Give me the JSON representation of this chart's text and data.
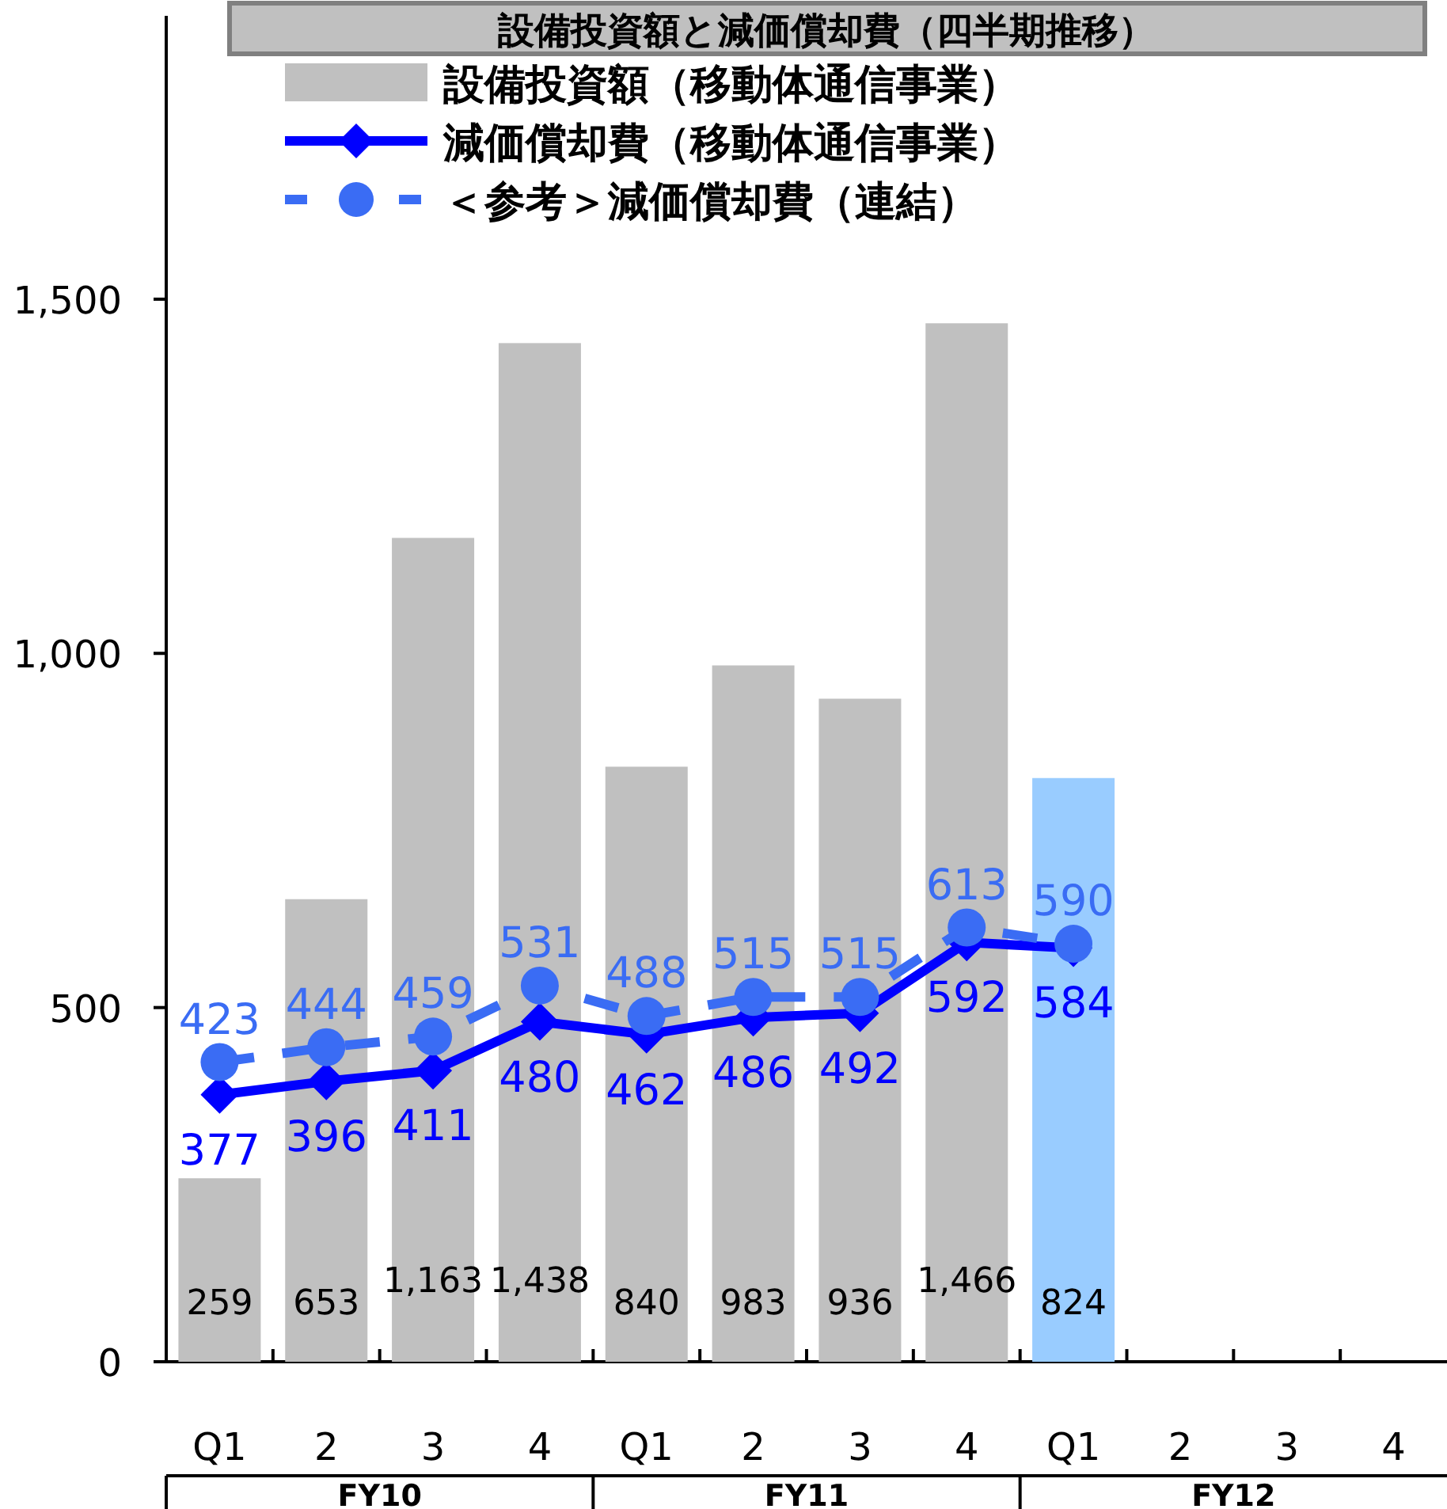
{
  "chart_data": {
    "type": "bar",
    "title": "設備投資額と減価償却費（四半期推移）",
    "categories": [
      "Q1",
      "2",
      "3",
      "4",
      "Q1",
      "2",
      "3",
      "4",
      "Q1",
      "2",
      "3",
      "4"
    ],
    "annotations": [
      "FY10",
      "FY11",
      "FY12"
    ],
    "ylim": [
      0,
      1900
    ],
    "yticks": [
      0,
      500,
      {
        "value": 1000,
        "label": "1,000"
      },
      {
        "value": 1500,
        "label": "1,500"
      }
    ],
    "grid": false,
    "legend": "top left",
    "data_labels": true,
    "series": [
      {
        "name": "設備投資額（移動体通信事業）",
        "color": "#c0c0c0",
        "colors": [
          "#c0c0c0",
          "#c0c0c0",
          "#c0c0c0",
          "#c0c0c0",
          "#c0c0c0",
          "#c0c0c0",
          "#c0c0c0",
          "#c0c0c0",
          "#99ccff",
          null,
          null,
          null
        ],
        "values": [
          259,
          653,
          1163,
          1438,
          840,
          983,
          936,
          1466,
          824,
          null,
          null,
          null
        ],
        "value_labels": [
          "259",
          "653",
          "1,163",
          "1,438",
          "840",
          "983",
          "936",
          "1,466",
          "824",
          null,
          null,
          null
        ]
      },
      {
        "name": "減価償却費（移動体通信事業）",
        "type": "line",
        "color": "#0000ff",
        "marker": "diamond",
        "line_style": "solid",
        "values": [
          377,
          396,
          411,
          480,
          462,
          486,
          492,
          592,
          584,
          null,
          null,
          null
        ]
      },
      {
        "name": "＜参考＞減価償却費（連結）",
        "type": "line",
        "color": "#3a6cf4",
        "marker": "circle",
        "line_style": "dashed",
        "values": [
          423,
          444,
          459,
          531,
          488,
          515,
          515,
          613,
          590,
          null,
          null,
          null
        ]
      }
    ]
  }
}
